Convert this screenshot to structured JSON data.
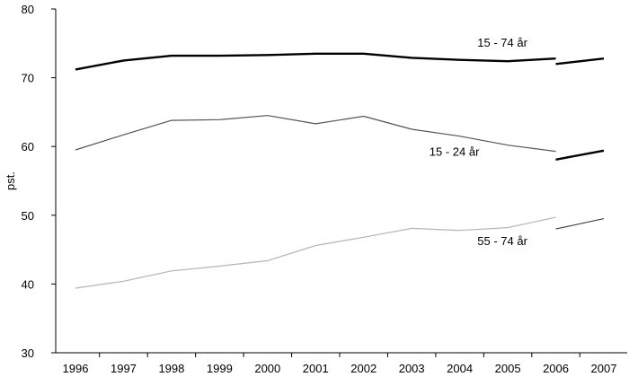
{
  "chart_data": {
    "type": "line",
    "ylabel": "pst.",
    "xlabel": "",
    "ylim": [
      30,
      80
    ],
    "yticks": [
      30,
      40,
      50,
      60,
      70,
      80
    ],
    "categories": [
      "1996",
      "1997",
      "1998",
      "1999",
      "2000",
      "2001",
      "2002",
      "2003",
      "2004",
      "2005",
      "2006",
      "2007"
    ],
    "grid": false,
    "legend": "none",
    "series": [
      {
        "name": "15 - 74 år",
        "color": "#000000",
        "weight": "thick",
        "segments": [
          [
            [
              "1996",
              71.2
            ],
            [
              "1997",
              72.5
            ],
            [
              "1998",
              73.2
            ],
            [
              "1999",
              73.2
            ],
            [
              "2000",
              73.3
            ],
            [
              "2001",
              73.5
            ],
            [
              "2002",
              73.5
            ],
            [
              "2003",
              72.9
            ],
            [
              "2004",
              72.6
            ],
            [
              "2005",
              72.4
            ],
            [
              "2006",
              72.8
            ]
          ],
          [
            [
              "2006",
              72.0
            ],
            [
              "2007",
              72.8
            ]
          ]
        ],
        "label_anchor": [
          "2005",
          75.2
        ]
      },
      {
        "name": "15 - 24 år",
        "color": "#555555",
        "weight": "thin",
        "segments": [
          [
            [
              "1996",
              59.5
            ],
            [
              "1997",
              61.7
            ],
            [
              "1998",
              63.8
            ],
            [
              "1999",
              63.9
            ],
            [
              "2000",
              64.5
            ],
            [
              "2001",
              63.3
            ],
            [
              "2002",
              64.4
            ],
            [
              "2003",
              62.5
            ],
            [
              "2004",
              61.5
            ],
            [
              "2005",
              60.2
            ],
            [
              "2006",
              59.3
            ]
          ]
        ],
        "label_anchor": [
          "2004",
          59.3
        ]
      },
      {
        "name": "15 - 24 år (segment 2)",
        "color": "#000000",
        "weight": "thick",
        "segments": [
          [
            [
              "2006",
              58.1
            ],
            [
              "2007",
              59.4
            ]
          ]
        ]
      },
      {
        "name": "55 - 74 år",
        "color": "#b4b4b4",
        "weight": "thin",
        "segments": [
          [
            [
              "1996",
              39.4
            ],
            [
              "1997",
              40.4
            ],
            [
              "1998",
              41.9
            ],
            [
              "1999",
              42.6
            ],
            [
              "2000",
              43.4
            ],
            [
              "2001",
              45.6
            ],
            [
              "2002",
              46.8
            ],
            [
              "2003",
              48.1
            ],
            [
              "2004",
              47.8
            ],
            [
              "2005",
              48.2
            ],
            [
              "2006",
              49.7
            ]
          ]
        ],
        "label_anchor": [
          "2005",
          46.3
        ]
      },
      {
        "name": "55 - 74 år (segment 2)",
        "color": "#444444",
        "weight": "thin",
        "segments": [
          [
            [
              "2006",
              48.0
            ],
            [
              "2007",
              49.5
            ]
          ]
        ]
      }
    ],
    "series_labels": [
      {
        "text": "15 - 74 år",
        "x": "2005",
        "y": 75.2
      },
      {
        "text": "15 - 24 år",
        "x": "2004",
        "y": 59.3
      },
      {
        "text": "55 - 74 år",
        "x": "2005",
        "y": 46.3
      }
    ]
  }
}
